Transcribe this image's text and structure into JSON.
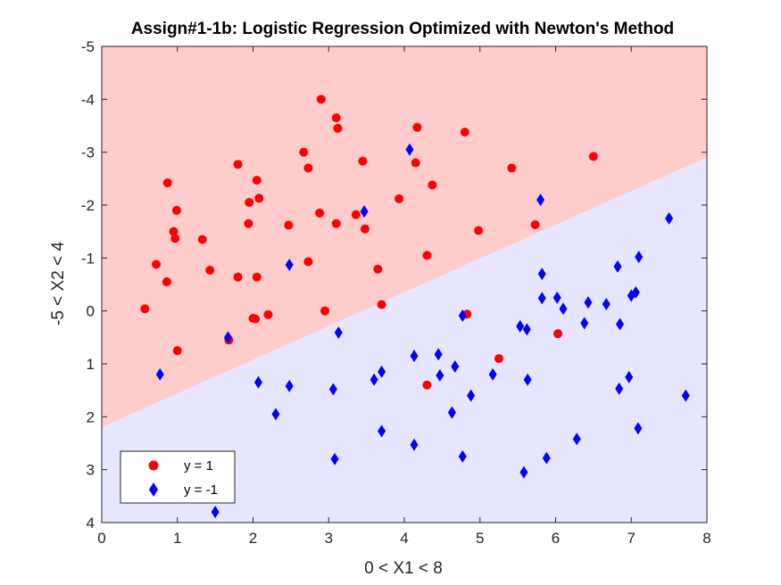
{
  "chart_data": {
    "type": "scatter",
    "title": "Assign#1-1b: Logistic Regression Optimized with Newton's Method",
    "xlabel": "0 < X1 < 8",
    "ylabel": "-5 < X2 < 4",
    "xlim": [
      0,
      8
    ],
    "ylim": [
      -5,
      4
    ],
    "y_axis_reversed": true,
    "grid": false,
    "legend_placement": "bottom-left",
    "x_ticks": [
      "0",
      "1",
      "2",
      "3",
      "4",
      "5",
      "6",
      "7",
      "8"
    ],
    "y_ticks": [
      "-5",
      "-4",
      "-3",
      "-2",
      "-1",
      "0",
      "1",
      "2",
      "3",
      "4"
    ],
    "regions": [
      {
        "label": "y = 1",
        "color": "#ffcccc"
      },
      {
        "label": "y = -1",
        "color": "#e6e6ff"
      }
    ],
    "decision_boundary": [
      [
        0,
        2.2
      ],
      [
        8,
        -2.9
      ]
    ],
    "series": [
      {
        "name": "y = 1",
        "marker": "circle",
        "color": "#ff0000",
        "points": [
          [
            2.9,
            -4.0
          ],
          [
            3.1,
            -3.65
          ],
          [
            3.12,
            -3.45
          ],
          [
            4.17,
            -3.47
          ],
          [
            4.8,
            -3.38
          ],
          [
            2.67,
            -3.0
          ],
          [
            2.73,
            -2.7
          ],
          [
            1.8,
            -2.77
          ],
          [
            3.45,
            -2.83
          ],
          [
            4.15,
            -2.8
          ],
          [
            5.42,
            -2.7
          ],
          [
            6.5,
            -2.92
          ],
          [
            0.87,
            -2.42
          ],
          [
            2.05,
            -2.47
          ],
          [
            4.37,
            -2.38
          ],
          [
            2.08,
            -2.13
          ],
          [
            1.95,
            -2.05
          ],
          [
            0.99,
            -1.9
          ],
          [
            3.93,
            -2.12
          ],
          [
            2.88,
            -1.85
          ],
          [
            3.36,
            -1.82
          ],
          [
            1.94,
            -1.65
          ],
          [
            2.47,
            -1.62
          ],
          [
            3.1,
            -1.65
          ],
          [
            3.48,
            -1.55
          ],
          [
            0.95,
            -1.5
          ],
          [
            0.97,
            -1.37
          ],
          [
            1.33,
            -1.35
          ],
          [
            4.98,
            -1.52
          ],
          [
            5.73,
            -1.63
          ],
          [
            0.72,
            -0.88
          ],
          [
            2.73,
            -0.93
          ],
          [
            1.43,
            -0.77
          ],
          [
            1.8,
            -0.64
          ],
          [
            2.05,
            -0.64
          ],
          [
            0.86,
            -0.55
          ],
          [
            3.65,
            -0.79
          ],
          [
            4.3,
            -1.05
          ],
          [
            0.57,
            -0.04
          ],
          [
            2.2,
            0.07
          ],
          [
            2.0,
            0.14
          ],
          [
            2.03,
            0.15
          ],
          [
            2.95,
            0.0
          ],
          [
            3.7,
            -0.12
          ],
          [
            4.83,
            0.06
          ],
          [
            1.68,
            0.55
          ],
          [
            1.0,
            0.75
          ],
          [
            6.03,
            0.43
          ],
          [
            5.25,
            0.9
          ],
          [
            4.3,
            1.4
          ]
        ]
      },
      {
        "name": "y = -1",
        "marker": "diamond",
        "color": "#0000ff",
        "points": [
          [
            4.07,
            -3.05
          ],
          [
            5.8,
            -2.1
          ],
          [
            3.47,
            -1.88
          ],
          [
            7.5,
            -1.75
          ],
          [
            2.48,
            -0.87
          ],
          [
            7.1,
            -1.02
          ],
          [
            6.82,
            -0.84
          ],
          [
            5.82,
            -0.7
          ],
          [
            5.82,
            -0.24
          ],
          [
            6.02,
            -0.25
          ],
          [
            6.1,
            -0.04
          ],
          [
            6.43,
            -0.16
          ],
          [
            6.67,
            -0.13
          ],
          [
            7.06,
            -0.35
          ],
          [
            7.0,
            -0.29
          ],
          [
            4.77,
            0.09
          ],
          [
            6.38,
            0.23
          ],
          [
            6.85,
            0.25
          ],
          [
            5.53,
            0.29
          ],
          [
            5.62,
            0.35
          ],
          [
            3.13,
            0.41
          ],
          [
            1.67,
            0.5
          ],
          [
            4.13,
            0.85
          ],
          [
            4.45,
            0.82
          ],
          [
            0.77,
            1.2
          ],
          [
            3.7,
            1.15
          ],
          [
            4.47,
            1.22
          ],
          [
            4.67,
            1.05
          ],
          [
            5.17,
            1.2
          ],
          [
            3.6,
            1.3
          ],
          [
            5.63,
            1.3
          ],
          [
            6.97,
            1.25
          ],
          [
            2.07,
            1.35
          ],
          [
            2.48,
            1.42
          ],
          [
            3.06,
            1.48
          ],
          [
            4.88,
            1.6
          ],
          [
            6.84,
            1.47
          ],
          [
            7.72,
            1.6
          ],
          [
            2.3,
            1.95
          ],
          [
            4.63,
            1.92
          ],
          [
            3.7,
            2.27
          ],
          [
            7.09,
            2.22
          ],
          [
            6.28,
            2.42
          ],
          [
            4.13,
            2.53
          ],
          [
            4.77,
            2.75
          ],
          [
            3.08,
            2.8
          ],
          [
            5.88,
            2.78
          ],
          [
            5.58,
            3.05
          ],
          [
            1.5,
            3.8
          ]
        ]
      }
    ]
  }
}
